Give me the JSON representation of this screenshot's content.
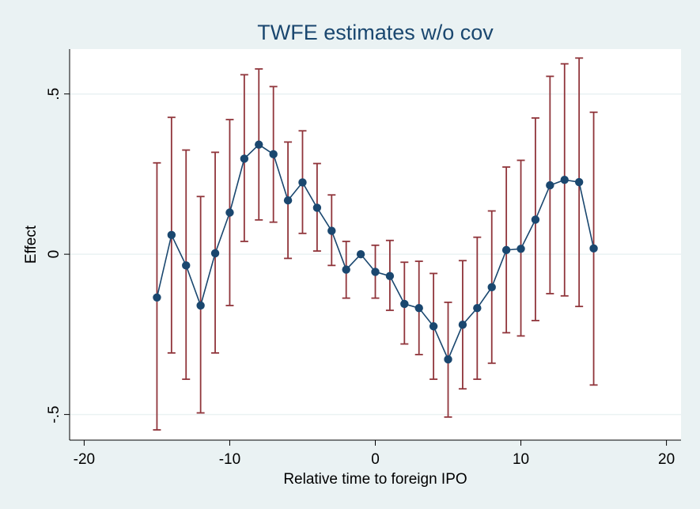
{
  "chart_data": {
    "type": "scatter",
    "title": "TWFE estimates w/o cov",
    "xlabel": "Relative time to foreign IPO",
    "ylabel": "Effect",
    "xlim": [
      -21,
      21
    ],
    "ylim": [
      -0.58,
      0.64
    ],
    "x_ticks": [
      -20,
      -10,
      0,
      10,
      20
    ],
    "x_tick_labels": [
      "-20",
      "-10",
      "0",
      "10",
      "20"
    ],
    "y_ticks": [
      -0.5,
      0,
      0.5
    ],
    "y_tick_labels": [
      "-.5",
      "0",
      ".5"
    ],
    "grid": "horizontal",
    "legend": "none",
    "colors": {
      "background": "#eaf2f3",
      "plot_area": "#ffffff",
      "line": "#1a476f",
      "marker": "#1a476f",
      "error_bar": "#90353b",
      "grid": "#eaf2f3"
    },
    "series": [
      {
        "x": [
          -15,
          -14,
          -13,
          -12,
          -11,
          -10,
          -9,
          -8,
          -7,
          -6,
          -5,
          -4,
          -3,
          -2,
          -1,
          0,
          1,
          2,
          3,
          4,
          5,
          6,
          7,
          8,
          9,
          10,
          11,
          12,
          13,
          14,
          15
        ],
        "values": [
          -0.135,
          0.06,
          -0.035,
          -0.16,
          0.003,
          0.13,
          0.298,
          0.342,
          0.312,
          0.168,
          0.224,
          0.145,
          0.073,
          -0.048,
          0,
          -0.055,
          -0.068,
          -0.155,
          -0.168,
          -0.225,
          -0.328,
          -0.22,
          -0.168,
          -0.103,
          0.013,
          0.017,
          0.108,
          0.215,
          0.232,
          0.225,
          0.018
        ],
        "lower": [
          -0.548,
          -0.308,
          -0.39,
          -0.495,
          -0.308,
          -0.16,
          0.04,
          0.107,
          0.1,
          -0.013,
          0.065,
          0.01,
          -0.035,
          -0.137,
          0,
          -0.137,
          -0.175,
          -0.28,
          -0.313,
          -0.39,
          -0.508,
          -0.42,
          -0.39,
          -0.34,
          -0.245,
          -0.255,
          -0.207,
          -0.123,
          -0.13,
          -0.163,
          -0.408
        ],
        "upper": [
          0.285,
          0.427,
          0.325,
          0.18,
          0.318,
          0.42,
          0.56,
          0.578,
          0.523,
          0.35,
          0.385,
          0.283,
          0.185,
          0.04,
          0,
          0.028,
          0.043,
          -0.025,
          -0.022,
          -0.06,
          -0.15,
          -0.02,
          0.053,
          0.135,
          0.272,
          0.293,
          0.425,
          0.555,
          0.594,
          0.612,
          0.443
        ]
      }
    ]
  }
}
